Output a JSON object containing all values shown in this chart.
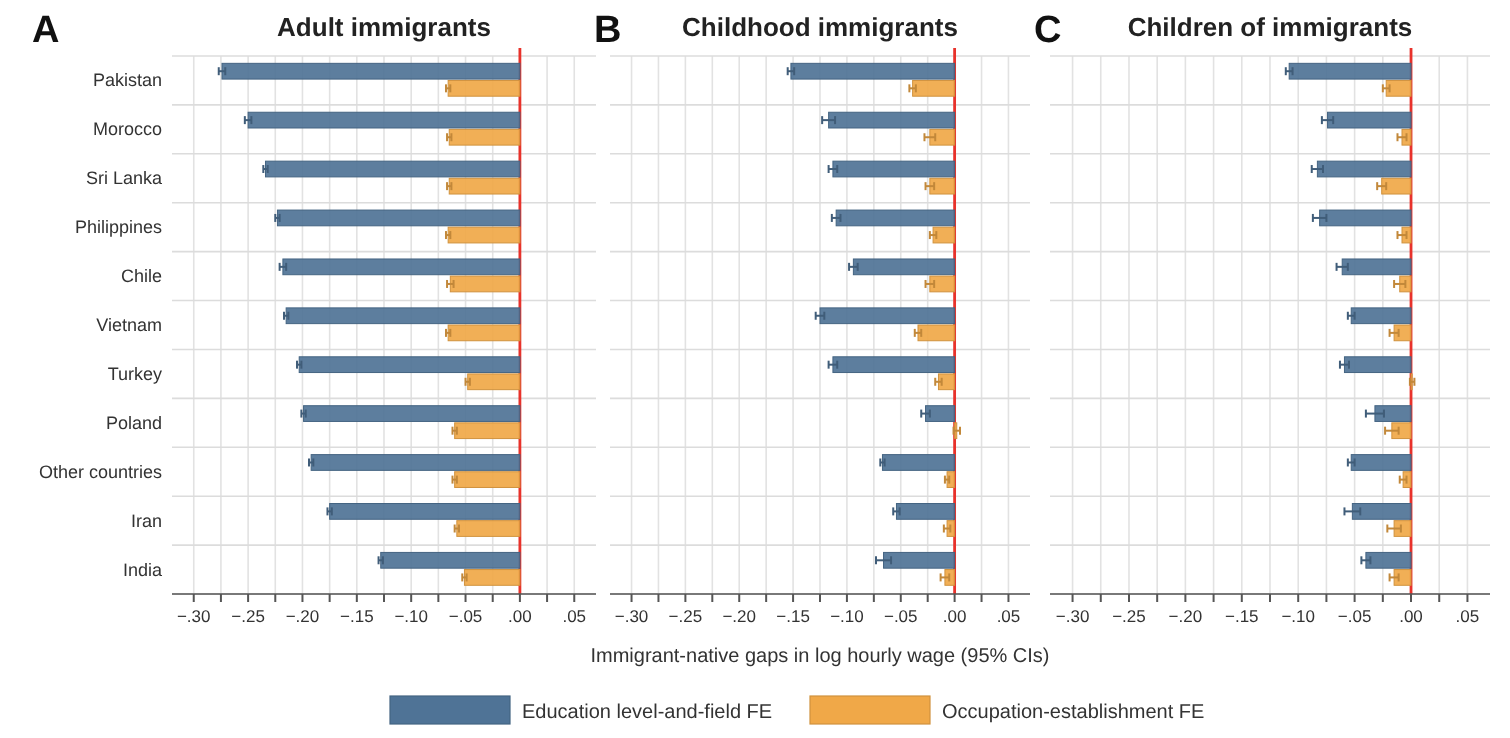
{
  "chart_data": [
    {
      "type": "bar",
      "orientation": "horizontal",
      "title": "Adult immigrants",
      "annotations": [
        "A"
      ],
      "categories": [
        "Pakistan",
        "Morocco",
        "Sri Lanka",
        "Philippines",
        "Chile",
        "Vietnam",
        "Turkey",
        "Poland",
        "Other countries",
        "Iran",
        "India"
      ],
      "series": [
        {
          "name": "Education level-and-field FE",
          "color": "#4f7396",
          "values": [
            -0.274,
            -0.25,
            -0.234,
            -0.223,
            -0.218,
            -0.215,
            -0.203,
            -0.199,
            -0.192,
            -0.175,
            -0.128
          ],
          "errors": [
            0.003,
            0.003,
            0.002,
            0.002,
            0.003,
            0.002,
            0.002,
            0.002,
            0.002,
            0.002,
            0.002
          ]
        },
        {
          "name": "Occupation-establishment FE",
          "color": "#f0a848",
          "values": [
            -0.066,
            -0.065,
            -0.065,
            -0.066,
            -0.064,
            -0.066,
            -0.048,
            -0.06,
            -0.06,
            -0.058,
            -0.051
          ],
          "errors": [
            0.002,
            0.002,
            0.002,
            0.002,
            0.003,
            0.002,
            0.002,
            0.002,
            0.002,
            0.002,
            0.002
          ]
        }
      ],
      "xlim": [
        -0.32,
        0.07
      ],
      "xticks": [
        {
          "value": -0.3,
          "label": "−.30"
        },
        {
          "value": -0.275,
          "label": null
        },
        {
          "value": -0.25,
          "label": "−.25"
        },
        {
          "value": -0.225,
          "label": null
        },
        {
          "value": -0.2,
          "label": "−.20"
        },
        {
          "value": -0.175,
          "label": null
        },
        {
          "value": -0.15,
          "label": "−.15"
        },
        {
          "value": -0.125,
          "label": null
        },
        {
          "value": -0.1,
          "label": "−.10"
        },
        {
          "value": -0.075,
          "label": null
        },
        {
          "value": -0.05,
          "label": "−.05"
        },
        {
          "value": -0.025,
          "label": null
        },
        {
          "value": 0,
          "label": ".00"
        },
        {
          "value": 0.025,
          "label": null
        },
        {
          "value": 0.05,
          "label": ".05"
        }
      ],
      "ref_lines": [
        {
          "axis": "x",
          "value": 0,
          "color": "#e8322b"
        }
      ],
      "grid": true,
      "legend": "bottom"
    },
    {
      "type": "bar",
      "orientation": "horizontal",
      "title": "Childhood immigrants",
      "annotations": [
        "B"
      ],
      "xlabel": "Immigrant-native gaps in log hourly wage (95% CIs)",
      "categories": [
        null,
        null,
        null,
        null,
        null,
        null,
        null,
        null,
        null,
        null,
        null
      ],
      "series": [
        {
          "color": "#4f7396",
          "values": [
            -0.152,
            -0.117,
            -0.113,
            -0.11,
            -0.094,
            -0.125,
            -0.113,
            -0.027,
            -0.067,
            -0.054,
            -0.066
          ],
          "errors": [
            0.003,
            0.006,
            0.004,
            0.004,
            0.004,
            0.004,
            0.004,
            0.004,
            0.002,
            0.003,
            0.007
          ]
        },
        {
          "color": "#f0a848",
          "values": [
            -0.039,
            -0.023,
            -0.023,
            -0.02,
            -0.023,
            -0.034,
            -0.015,
            0.002,
            -0.007,
            -0.007,
            -0.009
          ],
          "errors": [
            0.003,
            0.005,
            0.004,
            0.003,
            0.004,
            0.003,
            0.003,
            0.003,
            0.002,
            0.003,
            0.004
          ]
        }
      ],
      "xlim": [
        -0.32,
        0.07
      ],
      "xticks": [
        {
          "value": -0.3,
          "label": "−.30"
        },
        {
          "value": -0.275,
          "label": null
        },
        {
          "value": -0.25,
          "label": "−.25"
        },
        {
          "value": -0.225,
          "label": null
        },
        {
          "value": -0.2,
          "label": "−.20"
        },
        {
          "value": -0.175,
          "label": null
        },
        {
          "value": -0.15,
          "label": "−.15"
        },
        {
          "value": -0.125,
          "label": null
        },
        {
          "value": -0.1,
          "label": "−.10"
        },
        {
          "value": -0.075,
          "label": null
        },
        {
          "value": -0.05,
          "label": "−.05"
        },
        {
          "value": -0.025,
          "label": null
        },
        {
          "value": 0,
          "label": ".00"
        },
        {
          "value": 0.025,
          "label": null
        },
        {
          "value": 0.05,
          "label": ".05"
        }
      ],
      "ref_lines": [
        {
          "axis": "x",
          "value": 0,
          "color": "#e8322b"
        }
      ],
      "grid": true
    },
    {
      "type": "bar",
      "orientation": "horizontal",
      "title": "Children of immigrants",
      "annotations": [
        "C"
      ],
      "categories": [
        null,
        null,
        null,
        null,
        null,
        null,
        null,
        null,
        null,
        null,
        null
      ],
      "series": [
        {
          "color": "#4f7396",
          "values": [
            -0.108,
            -0.074,
            -0.083,
            -0.081,
            -0.061,
            -0.053,
            -0.059,
            -0.032,
            -0.053,
            -0.052,
            -0.04
          ],
          "errors": [
            0.003,
            0.005,
            0.005,
            0.006,
            0.005,
            0.003,
            0.004,
            0.008,
            0.003,
            0.007,
            0.004
          ]
        },
        {
          "color": "#f0a848",
          "values": [
            -0.022,
            -0.008,
            -0.026,
            -0.008,
            -0.01,
            -0.015,
            0.001,
            -0.017,
            -0.007,
            -0.015,
            -0.015
          ],
          "errors": [
            0.003,
            0.004,
            0.004,
            0.004,
            0.005,
            0.004,
            0.002,
            0.006,
            0.003,
            0.006,
            0.004
          ]
        }
      ],
      "xlim": [
        -0.32,
        0.07
      ],
      "xticks": [
        {
          "value": -0.3,
          "label": "−.30"
        },
        {
          "value": -0.275,
          "label": null
        },
        {
          "value": -0.25,
          "label": "−.25"
        },
        {
          "value": -0.225,
          "label": null
        },
        {
          "value": -0.2,
          "label": "−.20"
        },
        {
          "value": -0.175,
          "label": null
        },
        {
          "value": -0.15,
          "label": "−.15"
        },
        {
          "value": -0.125,
          "label": null
        },
        {
          "value": -0.1,
          "label": "−.10"
        },
        {
          "value": -0.075,
          "label": null
        },
        {
          "value": -0.05,
          "label": "−.05"
        },
        {
          "value": -0.025,
          "label": null
        },
        {
          "value": 0,
          "label": ".00"
        },
        {
          "value": 0.025,
          "label": null
        },
        {
          "value": 0.05,
          "label": ".05"
        }
      ],
      "ref_lines": [
        {
          "axis": "x",
          "value": 0,
          "color": "#e8322b"
        }
      ],
      "grid": true
    }
  ]
}
